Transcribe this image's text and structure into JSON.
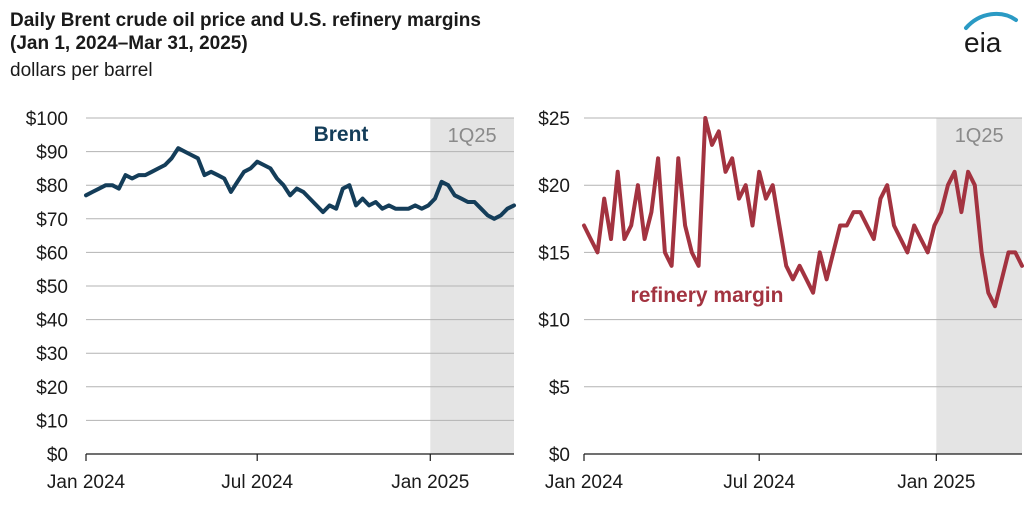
{
  "header": {
    "title_line1": "Daily Brent crude oil price and U.S. refinery margins",
    "title_line2": "(Jan 1, 2024–Mar 31, 2025)",
    "unit": "dollars per barrel",
    "logo_text": "eia"
  },
  "colors": {
    "brent": "#143d59",
    "margin": "#a33340",
    "shade": "#e4e4e4",
    "grid": "#b3b3b3",
    "logo_arc": "#2a9ac4"
  },
  "chart_data": [
    {
      "type": "line",
      "xlabels": [
        "Jan 2024",
        "Jul 2024",
        "Jan 2025"
      ],
      "xrange": [
        "2024-01-01",
        "2025-03-31"
      ],
      "ylim": [
        0,
        100
      ],
      "yticks": [
        "$0",
        "$10",
        "$20",
        "$30",
        "$40",
        "$50",
        "$60",
        "$70",
        "$80",
        "$90",
        "$100"
      ],
      "shaded": {
        "label": "1Q25",
        "from": "2025-01-01",
        "to": "2025-03-31"
      },
      "grid": true,
      "series": [
        {
          "name": "Brent",
          "x": [
            "2024-01-01",
            "2024-01-08",
            "2024-01-15",
            "2024-01-22",
            "2024-01-29",
            "2024-02-05",
            "2024-02-12",
            "2024-02-19",
            "2024-02-26",
            "2024-03-04",
            "2024-03-11",
            "2024-03-18",
            "2024-03-25",
            "2024-04-01",
            "2024-04-08",
            "2024-04-15",
            "2024-04-22",
            "2024-04-29",
            "2024-05-06",
            "2024-05-13",
            "2024-05-20",
            "2024-05-27",
            "2024-06-03",
            "2024-06-10",
            "2024-06-17",
            "2024-06-24",
            "2024-07-01",
            "2024-07-08",
            "2024-07-15",
            "2024-07-22",
            "2024-07-29",
            "2024-08-05",
            "2024-08-12",
            "2024-08-19",
            "2024-08-26",
            "2024-09-02",
            "2024-09-09",
            "2024-09-16",
            "2024-09-23",
            "2024-09-30",
            "2024-10-07",
            "2024-10-14",
            "2024-10-21",
            "2024-10-28",
            "2024-11-04",
            "2024-11-11",
            "2024-11-18",
            "2024-11-25",
            "2024-12-02",
            "2024-12-09",
            "2024-12-16",
            "2024-12-23",
            "2024-12-30",
            "2025-01-06",
            "2025-01-13",
            "2025-01-20",
            "2025-01-27",
            "2025-02-03",
            "2025-02-10",
            "2025-02-17",
            "2025-02-24",
            "2025-03-03",
            "2025-03-10",
            "2025-03-17",
            "2025-03-24",
            "2025-03-31"
          ],
          "y": [
            77,
            78,
            79,
            80,
            80,
            79,
            83,
            82,
            83,
            83,
            84,
            85,
            86,
            88,
            91,
            90,
            89,
            88,
            83,
            84,
            83,
            82,
            78,
            81,
            84,
            85,
            87,
            86,
            85,
            82,
            80,
            77,
            79,
            78,
            76,
            74,
            72,
            74,
            73,
            79,
            80,
            74,
            76,
            74,
            75,
            73,
            74,
            73,
            73,
            73,
            74,
            73,
            74,
            76,
            81,
            80,
            77,
            76,
            75,
            75,
            73,
            71,
            70,
            71,
            73,
            74
          ]
        }
      ]
    },
    {
      "type": "line",
      "xlabels": [
        "Jan 2024",
        "Jul 2024",
        "Jan 2025"
      ],
      "xrange": [
        "2024-01-01",
        "2025-03-31"
      ],
      "ylim": [
        0,
        25
      ],
      "yticks": [
        "$0",
        "$5",
        "$10",
        "$15",
        "$20",
        "$25"
      ],
      "shaded": {
        "label": "1Q25",
        "from": "2025-01-01",
        "to": "2025-03-31"
      },
      "grid": true,
      "series": [
        {
          "name": "refinery margin",
          "x": [
            "2024-01-01",
            "2024-01-08",
            "2024-01-15",
            "2024-01-22",
            "2024-01-29",
            "2024-02-05",
            "2024-02-12",
            "2024-02-19",
            "2024-02-26",
            "2024-03-04",
            "2024-03-11",
            "2024-03-18",
            "2024-03-25",
            "2024-04-01",
            "2024-04-08",
            "2024-04-15",
            "2024-04-22",
            "2024-04-29",
            "2024-05-06",
            "2024-05-13",
            "2024-05-20",
            "2024-05-27",
            "2024-06-03",
            "2024-06-10",
            "2024-06-17",
            "2024-06-24",
            "2024-07-01",
            "2024-07-08",
            "2024-07-15",
            "2024-07-22",
            "2024-07-29",
            "2024-08-05",
            "2024-08-12",
            "2024-08-19",
            "2024-08-26",
            "2024-09-02",
            "2024-09-09",
            "2024-09-16",
            "2024-09-23",
            "2024-09-30",
            "2024-10-07",
            "2024-10-14",
            "2024-10-21",
            "2024-10-28",
            "2024-11-04",
            "2024-11-11",
            "2024-11-18",
            "2024-11-25",
            "2024-12-02",
            "2024-12-09",
            "2024-12-16",
            "2024-12-23",
            "2024-12-30",
            "2025-01-06",
            "2025-01-13",
            "2025-01-20",
            "2025-01-27",
            "2025-02-03",
            "2025-02-10",
            "2025-02-17",
            "2025-02-24",
            "2025-03-03",
            "2025-03-10",
            "2025-03-17",
            "2025-03-24",
            "2025-03-31"
          ],
          "y": [
            17,
            16,
            15,
            19,
            16,
            21,
            16,
            17,
            20,
            16,
            18,
            22,
            15,
            14,
            22,
            17,
            15,
            14,
            25,
            23,
            24,
            21,
            22,
            19,
            20,
            17,
            21,
            19,
            20,
            17,
            14,
            13,
            14,
            13,
            12,
            15,
            13,
            15,
            17,
            17,
            18,
            18,
            17,
            16,
            19,
            20,
            17,
            16,
            15,
            17,
            16,
            15,
            17,
            18,
            20,
            21,
            18,
            21,
            20,
            15,
            12,
            11,
            13,
            15,
            15,
            14
          ]
        }
      ]
    }
  ]
}
